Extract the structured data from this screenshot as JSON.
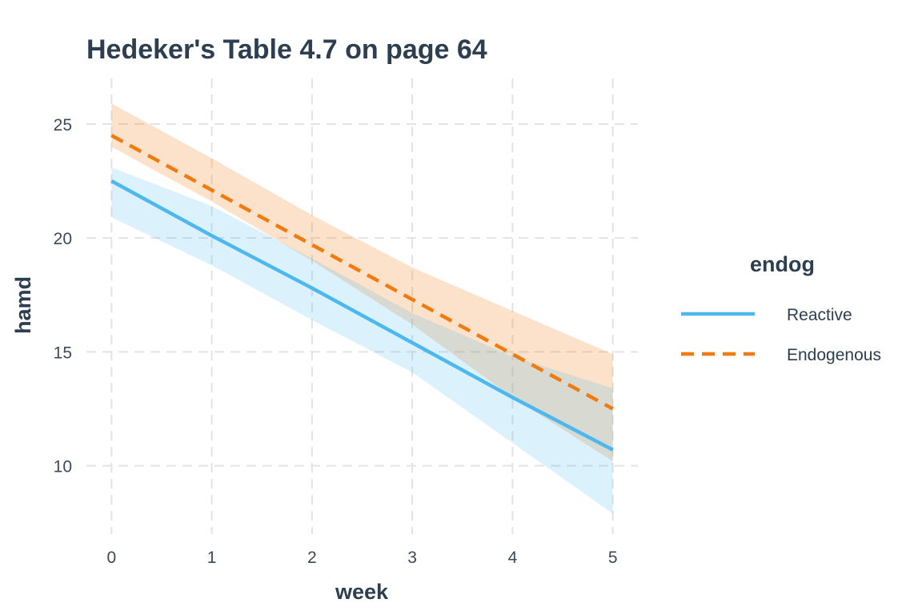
{
  "chart_data": {
    "type": "line",
    "title": "Hedeker's Table 4.7 on page 64",
    "xlabel": "week",
    "ylabel": "hamd",
    "x": [
      0,
      1,
      2,
      3,
      4,
      5
    ],
    "xticks": [
      "0",
      "1",
      "2",
      "3",
      "4",
      "5"
    ],
    "yticks": [
      "10",
      "15",
      "20",
      "25"
    ],
    "xlim": [
      -0.25,
      5.25
    ],
    "ylim": [
      7.0,
      27.0
    ],
    "grid": true,
    "legend": {
      "title": "endog",
      "placement": "right"
    },
    "series": [
      {
        "name": "Reactive",
        "color": "#4DB8F0",
        "dash": "solid",
        "values": [
          22.5,
          20.1,
          17.8,
          15.4,
          13.0,
          10.7
        ],
        "lower": [
          20.9,
          18.8,
          16.4,
          14.1,
          11.0,
          7.9
        ],
        "upper": [
          23.1,
          21.4,
          19.1,
          16.7,
          14.8,
          13.4
        ]
      },
      {
        "name": "Endogenous",
        "color": "#F07B0F",
        "dash": "dashed",
        "values": [
          24.5,
          22.1,
          19.7,
          17.3,
          14.9,
          12.5
        ],
        "lower": [
          24.0,
          21.6,
          19.0,
          16.2,
          13.0,
          10.2
        ],
        "upper": [
          25.9,
          23.5,
          21.0,
          18.7,
          16.8,
          14.9
        ]
      }
    ]
  }
}
